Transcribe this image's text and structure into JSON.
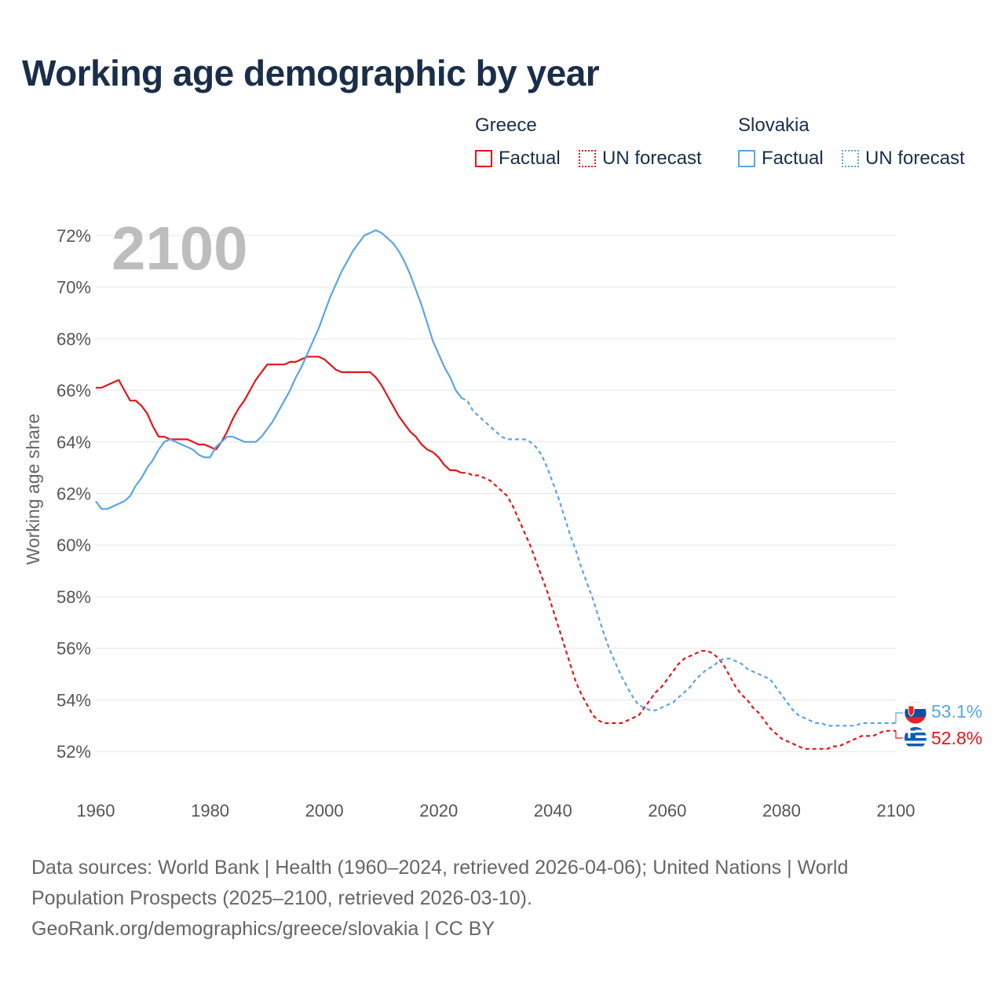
{
  "title": "Working age demographic by year",
  "legend": {
    "groups": [
      {
        "name": "Greece",
        "color": "#e3151a",
        "items": [
          {
            "label": "Factual",
            "style": "solid"
          },
          {
            "label": "UN forecast",
            "style": "dotted"
          }
        ]
      },
      {
        "name": "Slovakia",
        "color": "#5aa5e6",
        "items": [
          {
            "label": "Factual",
            "style": "solid"
          },
          {
            "label": "UN forecast",
            "style": "dotted"
          }
        ]
      }
    ]
  },
  "footer": {
    "line1": "Data sources: World Bank | Health (1960–2024, retrieved 2026-04-06); United Nations | World",
    "line2": "Population Prospects (2025–2100, retrieved 2026-03-10).",
    "line3": "GeoRank.org/demographics/greece/slovakia | CC BY"
  },
  "chart_data": {
    "type": "line",
    "title": "Working age demographic by year",
    "xlabel": "",
    "ylabel": "Working age share",
    "xlim": [
      1960,
      2100
    ],
    "ylim": [
      51,
      73
    ],
    "x_ticks": [
      1960,
      1980,
      2000,
      2020,
      2040,
      2060,
      2080,
      2100
    ],
    "y_ticks": [
      52,
      54,
      56,
      58,
      60,
      62,
      64,
      66,
      68,
      70,
      72
    ],
    "y_tick_labels": [
      "52%",
      "54%",
      "56%",
      "58%",
      "60%",
      "62%",
      "64%",
      "66%",
      "68%",
      "70%",
      "72%"
    ],
    "x_tick_labels": [
      "1960",
      "1980",
      "2000",
      "2020",
      "2040",
      "2060",
      "2080",
      "2100"
    ],
    "grid": "horizontal",
    "year_watermark": "2100",
    "forecast_start": 2024,
    "end_labels": {
      "Slovakia": "53.1%",
      "Greece": "52.8%"
    },
    "series": [
      {
        "name": "Greece",
        "color": "#e3151a",
        "points": [
          [
            1960,
            66.1
          ],
          [
            1961,
            66.1
          ],
          [
            1962,
            66.2
          ],
          [
            1963,
            66.3
          ],
          [
            1964,
            66.4
          ],
          [
            1965,
            66.0
          ],
          [
            1966,
            65.6
          ],
          [
            1967,
            65.6
          ],
          [
            1968,
            65.4
          ],
          [
            1969,
            65.1
          ],
          [
            1970,
            64.6
          ],
          [
            1971,
            64.2
          ],
          [
            1972,
            64.2
          ],
          [
            1973,
            64.1
          ],
          [
            1974,
            64.1
          ],
          [
            1975,
            64.1
          ],
          [
            1976,
            64.1
          ],
          [
            1977,
            64.0
          ],
          [
            1978,
            63.9
          ],
          [
            1979,
            63.9
          ],
          [
            1980,
            63.8
          ],
          [
            1981,
            63.7
          ],
          [
            1982,
            64.0
          ],
          [
            1983,
            64.4
          ],
          [
            1984,
            64.9
          ],
          [
            1985,
            65.3
          ],
          [
            1986,
            65.6
          ],
          [
            1987,
            66.0
          ],
          [
            1988,
            66.4
          ],
          [
            1989,
            66.7
          ],
          [
            1990,
            67.0
          ],
          [
            1991,
            67.0
          ],
          [
            1992,
            67.0
          ],
          [
            1993,
            67.0
          ],
          [
            1994,
            67.1
          ],
          [
            1995,
            67.1
          ],
          [
            1996,
            67.2
          ],
          [
            1997,
            67.3
          ],
          [
            1998,
            67.3
          ],
          [
            1999,
            67.3
          ],
          [
            2000,
            67.2
          ],
          [
            2001,
            67.0
          ],
          [
            2002,
            66.8
          ],
          [
            2003,
            66.7
          ],
          [
            2004,
            66.7
          ],
          [
            2005,
            66.7
          ],
          [
            2006,
            66.7
          ],
          [
            2007,
            66.7
          ],
          [
            2008,
            66.7
          ],
          [
            2009,
            66.5
          ],
          [
            2010,
            66.2
          ],
          [
            2011,
            65.8
          ],
          [
            2012,
            65.4
          ],
          [
            2013,
            65.0
          ],
          [
            2014,
            64.7
          ],
          [
            2015,
            64.4
          ],
          [
            2016,
            64.2
          ],
          [
            2017,
            63.9
          ],
          [
            2018,
            63.7
          ],
          [
            2019,
            63.6
          ],
          [
            2020,
            63.4
          ],
          [
            2021,
            63.1
          ],
          [
            2022,
            62.9
          ],
          [
            2023,
            62.9
          ],
          [
            2024,
            62.8
          ],
          [
            2025,
            62.8
          ],
          [
            2026,
            62.7
          ],
          [
            2027,
            62.7
          ],
          [
            2028,
            62.6
          ],
          [
            2029,
            62.5
          ],
          [
            2030,
            62.3
          ],
          [
            2031,
            62.1
          ],
          [
            2032,
            61.9
          ],
          [
            2033,
            61.5
          ],
          [
            2034,
            61.0
          ],
          [
            2035,
            60.5
          ],
          [
            2036,
            60.0
          ],
          [
            2037,
            59.4
          ],
          [
            2038,
            58.8
          ],
          [
            2039,
            58.2
          ],
          [
            2040,
            57.5
          ],
          [
            2041,
            56.8
          ],
          [
            2042,
            56.1
          ],
          [
            2043,
            55.4
          ],
          [
            2044,
            54.7
          ],
          [
            2045,
            54.2
          ],
          [
            2046,
            53.8
          ],
          [
            2047,
            53.4
          ],
          [
            2048,
            53.2
          ],
          [
            2049,
            53.1
          ],
          [
            2050,
            53.1
          ],
          [
            2051,
            53.1
          ],
          [
            2052,
            53.1
          ],
          [
            2053,
            53.2
          ],
          [
            2054,
            53.3
          ],
          [
            2055,
            53.4
          ],
          [
            2056,
            53.7
          ],
          [
            2057,
            54.0
          ],
          [
            2058,
            54.3
          ],
          [
            2059,
            54.5
          ],
          [
            2060,
            54.8
          ],
          [
            2061,
            55.1
          ],
          [
            2062,
            55.4
          ],
          [
            2063,
            55.6
          ],
          [
            2064,
            55.7
          ],
          [
            2065,
            55.8
          ],
          [
            2066,
            55.9
          ],
          [
            2067,
            55.9
          ],
          [
            2068,
            55.8
          ],
          [
            2069,
            55.6
          ],
          [
            2070,
            55.3
          ],
          [
            2071,
            54.9
          ],
          [
            2072,
            54.5
          ],
          [
            2073,
            54.2
          ],
          [
            2074,
            54.0
          ],
          [
            2075,
            53.7
          ],
          [
            2076,
            53.5
          ],
          [
            2077,
            53.2
          ],
          [
            2078,
            52.9
          ],
          [
            2079,
            52.7
          ],
          [
            2080,
            52.5
          ],
          [
            2081,
            52.4
          ],
          [
            2082,
            52.3
          ],
          [
            2083,
            52.2
          ],
          [
            2084,
            52.1
          ],
          [
            2085,
            52.1
          ],
          [
            2086,
            52.1
          ],
          [
            2087,
            52.1
          ],
          [
            2088,
            52.1
          ],
          [
            2089,
            52.2
          ],
          [
            2090,
            52.2
          ],
          [
            2091,
            52.3
          ],
          [
            2092,
            52.4
          ],
          [
            2093,
            52.5
          ],
          [
            2094,
            52.6
          ],
          [
            2095,
            52.6
          ],
          [
            2096,
            52.6
          ],
          [
            2097,
            52.7
          ],
          [
            2098,
            52.8
          ],
          [
            2099,
            52.8
          ],
          [
            2100,
            52.8
          ]
        ]
      },
      {
        "name": "Slovakia",
        "color": "#5aa5e6",
        "points": [
          [
            1960,
            61.7
          ],
          [
            1961,
            61.4
          ],
          [
            1962,
            61.4
          ],
          [
            1963,
            61.5
          ],
          [
            1964,
            61.6
          ],
          [
            1965,
            61.7
          ],
          [
            1966,
            61.9
          ],
          [
            1967,
            62.3
          ],
          [
            1968,
            62.6
          ],
          [
            1969,
            63.0
          ],
          [
            1970,
            63.3
          ],
          [
            1971,
            63.7
          ],
          [
            1972,
            64.0
          ],
          [
            1973,
            64.1
          ],
          [
            1974,
            64.0
          ],
          [
            1975,
            63.9
          ],
          [
            1976,
            63.8
          ],
          [
            1977,
            63.7
          ],
          [
            1978,
            63.5
          ],
          [
            1979,
            63.4
          ],
          [
            1980,
            63.4
          ],
          [
            1981,
            63.8
          ],
          [
            1982,
            64.0
          ],
          [
            1983,
            64.2
          ],
          [
            1984,
            64.2
          ],
          [
            1985,
            64.1
          ],
          [
            1986,
            64.0
          ],
          [
            1987,
            64.0
          ],
          [
            1988,
            64.0
          ],
          [
            1989,
            64.2
          ],
          [
            1990,
            64.5
          ],
          [
            1991,
            64.8
          ],
          [
            1992,
            65.2
          ],
          [
            1993,
            65.6
          ],
          [
            1994,
            66.0
          ],
          [
            1995,
            66.5
          ],
          [
            1996,
            66.9
          ],
          [
            1997,
            67.4
          ],
          [
            1998,
            67.9
          ],
          [
            1999,
            68.4
          ],
          [
            2000,
            69.0
          ],
          [
            2001,
            69.6
          ],
          [
            2002,
            70.1
          ],
          [
            2003,
            70.6
          ],
          [
            2004,
            71.0
          ],
          [
            2005,
            71.4
          ],
          [
            2006,
            71.7
          ],
          [
            2007,
            72.0
          ],
          [
            2008,
            72.1
          ],
          [
            2009,
            72.2
          ],
          [
            2010,
            72.1
          ],
          [
            2011,
            71.9
          ],
          [
            2012,
            71.7
          ],
          [
            2013,
            71.4
          ],
          [
            2014,
            71.0
          ],
          [
            2015,
            70.5
          ],
          [
            2016,
            69.9
          ],
          [
            2017,
            69.3
          ],
          [
            2018,
            68.6
          ],
          [
            2019,
            67.9
          ],
          [
            2020,
            67.4
          ],
          [
            2021,
            66.9
          ],
          [
            2022,
            66.5
          ],
          [
            2023,
            66.0
          ],
          [
            2024,
            65.7
          ],
          [
            2025,
            65.6
          ],
          [
            2026,
            65.2
          ],
          [
            2027,
            65.0
          ],
          [
            2028,
            64.8
          ],
          [
            2029,
            64.6
          ],
          [
            2030,
            64.4
          ],
          [
            2031,
            64.2
          ],
          [
            2032,
            64.1
          ],
          [
            2033,
            64.1
          ],
          [
            2034,
            64.1
          ],
          [
            2035,
            64.1
          ],
          [
            2036,
            64.0
          ],
          [
            2037,
            63.8
          ],
          [
            2038,
            63.5
          ],
          [
            2039,
            63.0
          ],
          [
            2040,
            62.4
          ],
          [
            2041,
            61.8
          ],
          [
            2042,
            61.1
          ],
          [
            2043,
            60.4
          ],
          [
            2044,
            59.8
          ],
          [
            2045,
            59.1
          ],
          [
            2046,
            58.5
          ],
          [
            2047,
            57.9
          ],
          [
            2048,
            57.2
          ],
          [
            2049,
            56.5
          ],
          [
            2050,
            55.9
          ],
          [
            2051,
            55.4
          ],
          [
            2052,
            54.9
          ],
          [
            2053,
            54.5
          ],
          [
            2054,
            54.1
          ],
          [
            2055,
            53.8
          ],
          [
            2056,
            53.7
          ],
          [
            2057,
            53.6
          ],
          [
            2058,
            53.6
          ],
          [
            2059,
            53.7
          ],
          [
            2060,
            53.8
          ],
          [
            2061,
            53.9
          ],
          [
            2062,
            54.1
          ],
          [
            2063,
            54.3
          ],
          [
            2064,
            54.5
          ],
          [
            2065,
            54.8
          ],
          [
            2066,
            55.0
          ],
          [
            2067,
            55.2
          ],
          [
            2068,
            55.3
          ],
          [
            2069,
            55.5
          ],
          [
            2070,
            55.6
          ],
          [
            2071,
            55.6
          ],
          [
            2072,
            55.5
          ],
          [
            2073,
            55.4
          ],
          [
            2074,
            55.2
          ],
          [
            2075,
            55.1
          ],
          [
            2076,
            55.0
          ],
          [
            2077,
            54.9
          ],
          [
            2078,
            54.8
          ],
          [
            2079,
            54.5
          ],
          [
            2080,
            54.2
          ],
          [
            2081,
            53.9
          ],
          [
            2082,
            53.6
          ],
          [
            2083,
            53.4
          ],
          [
            2084,
            53.3
          ],
          [
            2085,
            53.2
          ],
          [
            2086,
            53.1
          ],
          [
            2087,
            53.1
          ],
          [
            2088,
            53.0
          ],
          [
            2089,
            53.0
          ],
          [
            2090,
            53.0
          ],
          [
            2091,
            53.0
          ],
          [
            2092,
            53.0
          ],
          [
            2093,
            53.0
          ],
          [
            2094,
            53.1
          ],
          [
            2095,
            53.1
          ],
          [
            2096,
            53.1
          ],
          [
            2097,
            53.1
          ],
          [
            2098,
            53.1
          ],
          [
            2099,
            53.1
          ],
          [
            2100,
            53.1
          ]
        ]
      }
    ]
  }
}
